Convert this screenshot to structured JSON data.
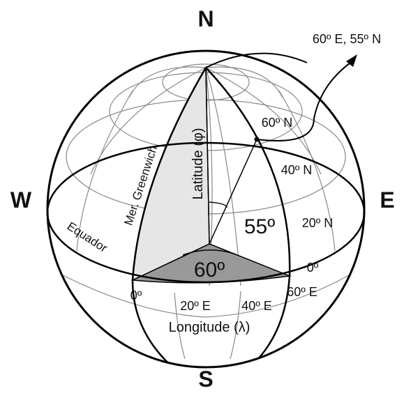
{
  "cardinals": {
    "north": "N",
    "south": "S",
    "west": "W",
    "east": "E"
  },
  "point_label": "60º E, 55º N",
  "latitudes": [
    "60º N",
    "40º N",
    "20º N",
    "0º"
  ],
  "longitudes": [
    "0º",
    "20º E",
    "40º E",
    "60º E"
  ],
  "axis_labels": {
    "longitude": "Longitude (λ)",
    "latitude": "Latitude (φ)"
  },
  "meridian_label": "Mer. Greenwich",
  "equator_label": "Equador",
  "angles": {
    "latitude": "55º",
    "longitude": "60º"
  }
}
